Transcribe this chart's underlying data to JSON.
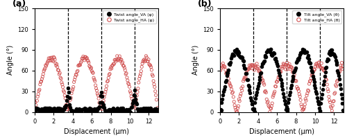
{
  "xlim": [
    0,
    13
  ],
  "ylim": [
    0,
    150
  ],
  "yticks": [
    0,
    30,
    60,
    90,
    120,
    150
  ],
  "xticks": [
    0,
    2,
    4,
    6,
    8,
    10,
    12
  ],
  "xlabel": "Displacement (μm)",
  "ylabel": "Angle (°)",
  "vlines_a": [
    3.5,
    7.0,
    10.5
  ],
  "vlines_b": [
    3.5,
    7.0,
    10.5
  ],
  "legend_a": [
    "Twist angle_VA (φ)",
    "Twist angle_HA (φ)"
  ],
  "legend_b": [
    "Tilt angle_VA (θ)",
    "Tilt angle_HA (θ)"
  ],
  "va_color": "#000000",
  "ha_color": "#d05050",
  "panel_labels": [
    "(a)",
    "(b)"
  ],
  "figsize": [
    5.0,
    2.02
  ],
  "dpi": 100,
  "all_bounds": [
    0.0,
    3.5,
    7.0,
    10.5,
    13.0
  ]
}
